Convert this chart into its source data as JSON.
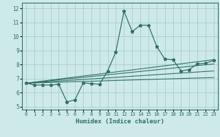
{
  "xlabel": "Humidex (Indice chaleur)",
  "xlim": [
    -0.5,
    23.5
  ],
  "ylim": [
    4.8,
    12.4
  ],
  "yticks": [
    5,
    6,
    7,
    8,
    9,
    10,
    11,
    12
  ],
  "xticks": [
    0,
    1,
    2,
    3,
    4,
    5,
    6,
    7,
    8,
    9,
    10,
    11,
    12,
    13,
    14,
    15,
    16,
    17,
    18,
    19,
    20,
    21,
    22,
    23
  ],
  "bg_color": "#ceeae8",
  "line_color": "#2e6e63",
  "grid_color": "#a8ccc9",
  "main_x": [
    0,
    1,
    2,
    3,
    4,
    5,
    6,
    7,
    8,
    9,
    10,
    11,
    12,
    13,
    14,
    15,
    16,
    17,
    18,
    19,
    20,
    21,
    22,
    23
  ],
  "main_y": [
    6.7,
    6.55,
    6.55,
    6.55,
    6.6,
    5.35,
    5.5,
    6.7,
    6.65,
    6.6,
    7.55,
    8.9,
    11.8,
    10.35,
    10.8,
    10.8,
    9.3,
    8.4,
    8.35,
    7.55,
    7.65,
    8.05,
    8.1,
    8.3
  ],
  "reg_lines": [
    {
      "x0": 0,
      "y0": 6.68,
      "x1": 23,
      "y1": 7.08
    },
    {
      "x0": 0,
      "y0": 6.68,
      "x1": 23,
      "y1": 7.55
    },
    {
      "x0": 0,
      "y0": 6.68,
      "x1": 23,
      "y1": 8.05
    },
    {
      "x0": 0,
      "y0": 6.68,
      "x1": 23,
      "y1": 8.35
    }
  ]
}
